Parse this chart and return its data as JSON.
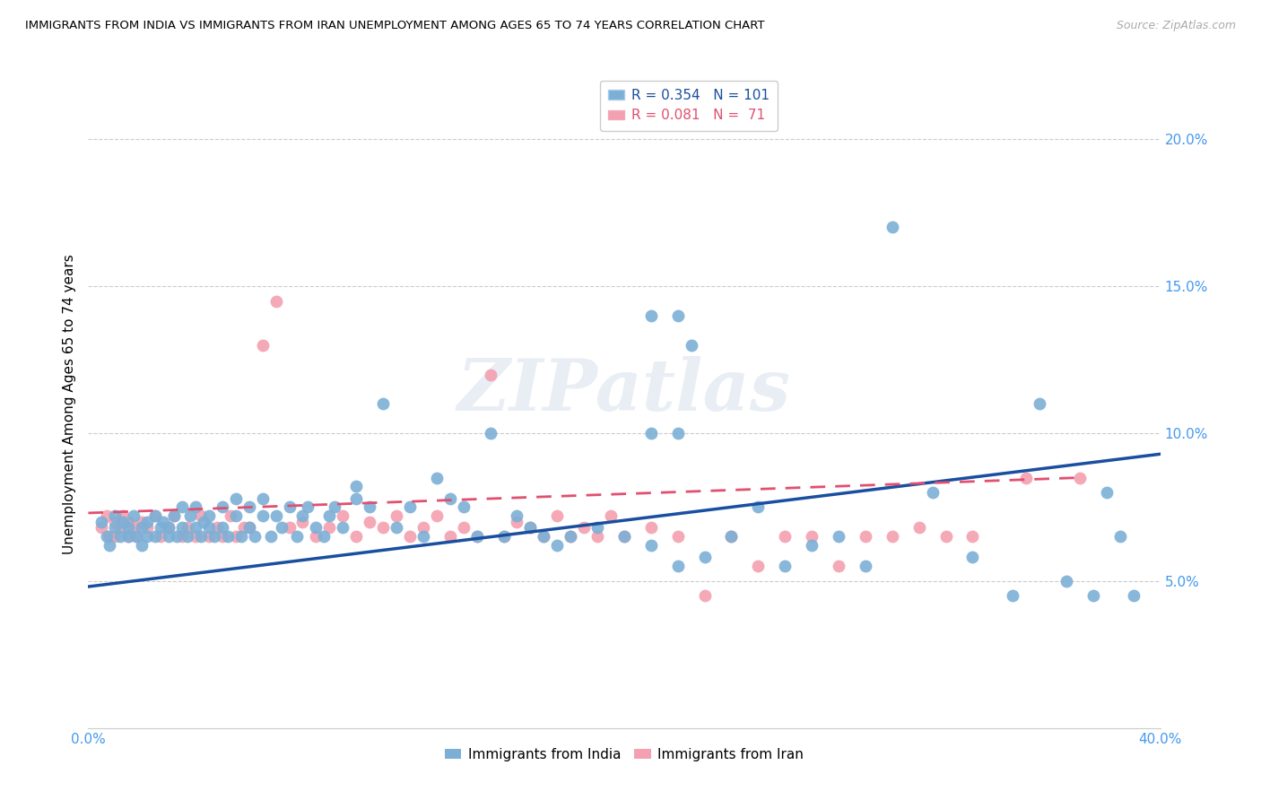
{
  "title": "IMMIGRANTS FROM INDIA VS IMMIGRANTS FROM IRAN UNEMPLOYMENT AMONG AGES 65 TO 74 YEARS CORRELATION CHART",
  "source": "Source: ZipAtlas.com",
  "ylabel": "Unemployment Among Ages 65 to 74 years",
  "xlim": [
    0.0,
    0.4
  ],
  "ylim": [
    0.0,
    0.22
  ],
  "yticks": [
    0.05,
    0.1,
    0.15,
    0.2
  ],
  "ytick_labels": [
    "5.0%",
    "10.0%",
    "15.0%",
    "20.0%"
  ],
  "xticks": [
    0.0,
    0.05,
    0.1,
    0.15,
    0.2,
    0.25,
    0.3,
    0.35,
    0.4
  ],
  "xtick_labels": [
    "0.0%",
    "",
    "",
    "",
    "",
    "",
    "",
    "",
    "40.0%"
  ],
  "india_R": 0.354,
  "india_N": 101,
  "iran_R": 0.081,
  "iran_N": 71,
  "india_color": "#7cafd6",
  "iran_color": "#f4a0b0",
  "india_line_color": "#1a4fa0",
  "iran_line_color": "#e05070",
  "watermark": "ZIPatlas",
  "india_scatter_x": [
    0.005,
    0.007,
    0.008,
    0.01,
    0.01,
    0.012,
    0.013,
    0.015,
    0.015,
    0.017,
    0.018,
    0.02,
    0.02,
    0.022,
    0.022,
    0.025,
    0.025,
    0.027,
    0.028,
    0.03,
    0.03,
    0.032,
    0.033,
    0.035,
    0.035,
    0.037,
    0.038,
    0.04,
    0.04,
    0.042,
    0.043,
    0.045,
    0.045,
    0.047,
    0.05,
    0.05,
    0.052,
    0.055,
    0.055,
    0.057,
    0.06,
    0.06,
    0.062,
    0.065,
    0.065,
    0.068,
    0.07,
    0.072,
    0.075,
    0.078,
    0.08,
    0.082,
    0.085,
    0.088,
    0.09,
    0.092,
    0.095,
    0.1,
    0.1,
    0.105,
    0.11,
    0.115,
    0.12,
    0.125,
    0.13,
    0.135,
    0.14,
    0.145,
    0.15,
    0.155,
    0.16,
    0.165,
    0.17,
    0.175,
    0.18,
    0.19,
    0.2,
    0.21,
    0.22,
    0.23,
    0.24,
    0.25,
    0.26,
    0.27,
    0.28,
    0.29,
    0.3,
    0.315,
    0.33,
    0.345,
    0.355,
    0.365,
    0.375,
    0.38,
    0.385,
    0.39,
    0.21,
    0.22,
    0.21,
    0.22,
    0.225
  ],
  "india_scatter_y": [
    0.07,
    0.065,
    0.062,
    0.068,
    0.072,
    0.065,
    0.07,
    0.065,
    0.068,
    0.072,
    0.065,
    0.068,
    0.062,
    0.07,
    0.065,
    0.072,
    0.065,
    0.068,
    0.07,
    0.065,
    0.068,
    0.072,
    0.065,
    0.075,
    0.068,
    0.065,
    0.072,
    0.068,
    0.075,
    0.065,
    0.07,
    0.068,
    0.072,
    0.065,
    0.075,
    0.068,
    0.065,
    0.072,
    0.078,
    0.065,
    0.075,
    0.068,
    0.065,
    0.072,
    0.078,
    0.065,
    0.072,
    0.068,
    0.075,
    0.065,
    0.072,
    0.075,
    0.068,
    0.065,
    0.072,
    0.075,
    0.068,
    0.078,
    0.082,
    0.075,
    0.11,
    0.068,
    0.075,
    0.065,
    0.085,
    0.078,
    0.075,
    0.065,
    0.1,
    0.065,
    0.072,
    0.068,
    0.065,
    0.062,
    0.065,
    0.068,
    0.065,
    0.062,
    0.055,
    0.058,
    0.065,
    0.075,
    0.055,
    0.062,
    0.065,
    0.055,
    0.17,
    0.08,
    0.058,
    0.045,
    0.11,
    0.05,
    0.045,
    0.08,
    0.065,
    0.045,
    0.1,
    0.1,
    0.14,
    0.14,
    0.13
  ],
  "iran_scatter_x": [
    0.005,
    0.007,
    0.008,
    0.01,
    0.01,
    0.012,
    0.013,
    0.015,
    0.015,
    0.017,
    0.018,
    0.02,
    0.022,
    0.025,
    0.027,
    0.03,
    0.032,
    0.035,
    0.037,
    0.04,
    0.042,
    0.045,
    0.048,
    0.05,
    0.053,
    0.055,
    0.058,
    0.06,
    0.065,
    0.07,
    0.075,
    0.08,
    0.085,
    0.09,
    0.095,
    0.1,
    0.105,
    0.11,
    0.115,
    0.12,
    0.125,
    0.13,
    0.135,
    0.14,
    0.145,
    0.15,
    0.155,
    0.16,
    0.165,
    0.17,
    0.175,
    0.18,
    0.185,
    0.19,
    0.195,
    0.2,
    0.21,
    0.22,
    0.23,
    0.24,
    0.25,
    0.26,
    0.27,
    0.28,
    0.29,
    0.3,
    0.31,
    0.32,
    0.33,
    0.35,
    0.37
  ],
  "iran_scatter_y": [
    0.068,
    0.072,
    0.065,
    0.07,
    0.065,
    0.068,
    0.072,
    0.065,
    0.07,
    0.068,
    0.065,
    0.07,
    0.068,
    0.072,
    0.065,
    0.068,
    0.072,
    0.065,
    0.068,
    0.065,
    0.072,
    0.065,
    0.068,
    0.065,
    0.072,
    0.065,
    0.068,
    0.068,
    0.13,
    0.145,
    0.068,
    0.07,
    0.065,
    0.068,
    0.072,
    0.065,
    0.07,
    0.068,
    0.072,
    0.065,
    0.068,
    0.072,
    0.065,
    0.068,
    0.065,
    0.12,
    0.065,
    0.07,
    0.068,
    0.065,
    0.072,
    0.065,
    0.068,
    0.065,
    0.072,
    0.065,
    0.068,
    0.065,
    0.045,
    0.065,
    0.055,
    0.065,
    0.065,
    0.055,
    0.065,
    0.065,
    0.068,
    0.065,
    0.065,
    0.085,
    0.085
  ],
  "india_line_x": [
    0.0,
    0.4
  ],
  "india_line_y": [
    0.048,
    0.093
  ],
  "iran_line_x": [
    0.0,
    0.37
  ],
  "iran_line_y": [
    0.073,
    0.085
  ]
}
